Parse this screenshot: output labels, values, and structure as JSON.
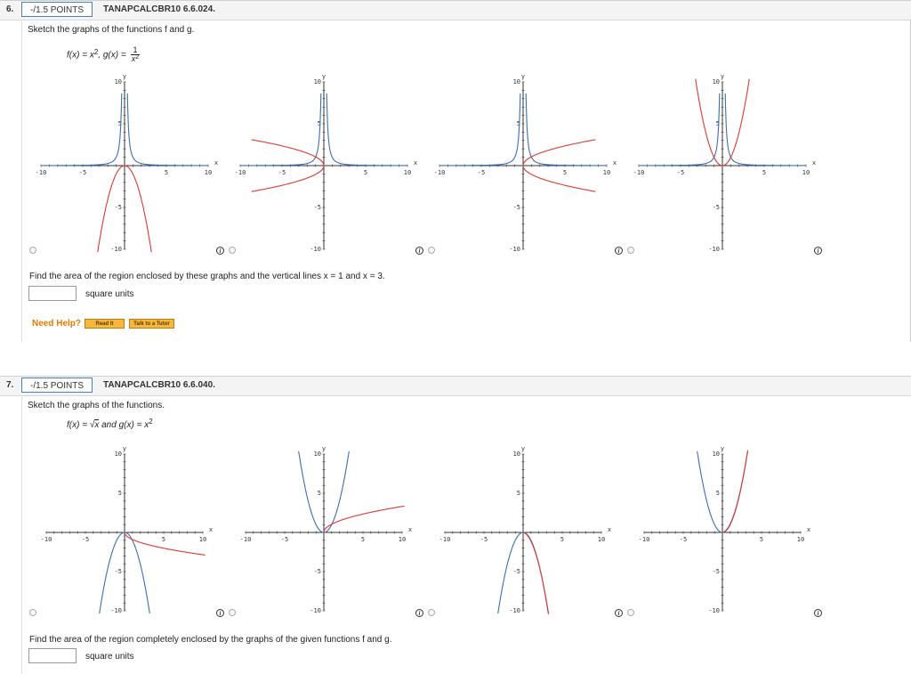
{
  "q6": {
    "number": "6.",
    "points": "-/1.5 POINTS",
    "code": "TANAPCALCBR10 6.6.024.",
    "instruction": "Sketch the graphs of the functions f and g.",
    "formula": {
      "f_label": "f(x) = x",
      "f_exp": "2",
      "sep": ", g(x) = ",
      "g_num": "1",
      "g_den": "x",
      "g_den_exp": "2"
    },
    "question": "Find the area of the region enclosed by these graphs and the vertical lines x = 1 and x = 3.",
    "answer_value": "",
    "unit": "square units",
    "need_help": "Need Help?",
    "read_it": "Read It",
    "talk_tutor": "Talk to a Tutor"
  },
  "q7": {
    "number": "7.",
    "points": "-/1.5 POINTS",
    "code": "TANAPCALCBR10 6.6.040.",
    "instruction": "Sketch the graphs of the functions.",
    "formula": {
      "f_label": "f(x) = ",
      "sqrt": "√",
      "f_arg": "x",
      "and": " and g(x) = x",
      "g_exp": "2"
    },
    "question": "Find the area of the region completely enclosed by the graphs of the given functions f and g.",
    "answer_value": "",
    "unit": "square units"
  },
  "axis_text": {
    "x": "x",
    "y": "y",
    "m10": "-10",
    "m5": "-5",
    "p5": "5",
    "p10": "10"
  },
  "info_glyph": "i",
  "colors": {
    "curve_blue": "#3a6fb5",
    "curve_red": "#e0382e",
    "accent": "#4a7fb0",
    "help": "#e07b00"
  },
  "chart_data": [
    {
      "type": "line",
      "question": "6",
      "option": 1,
      "xlim": [
        -10,
        10
      ],
      "ylim": [
        -10,
        10
      ],
      "series": [
        {
          "color": "#3a6fb5",
          "expr": "1/x^2"
        },
        {
          "color": "#e0382e",
          "expr": "-x^2"
        }
      ]
    },
    {
      "type": "line",
      "question": "6",
      "option": 2,
      "xlim": [
        -10,
        10
      ],
      "ylim": [
        -10,
        10
      ],
      "series": [
        {
          "color": "#3a6fb5",
          "expr": "1/x^2"
        },
        {
          "color": "#e0382e",
          "expr": "x = y^2 (left-opening)"
        }
      ]
    },
    {
      "type": "line",
      "question": "6",
      "option": 3,
      "xlim": [
        -10,
        10
      ],
      "ylim": [
        -10,
        10
      ],
      "series": [
        {
          "color": "#3a6fb5",
          "expr": "1/x^2"
        },
        {
          "color": "#e0382e",
          "expr": "x = y^2 (right-opening)"
        }
      ]
    },
    {
      "type": "line",
      "question": "6",
      "option": 4,
      "xlim": [
        -10,
        10
      ],
      "ylim": [
        -10,
        10
      ],
      "series": [
        {
          "color": "#3a6fb5",
          "expr": "1/x^2"
        },
        {
          "color": "#e0382e",
          "expr": "x^2"
        }
      ]
    },
    {
      "type": "line",
      "question": "7",
      "option": 1,
      "xlim": [
        -10,
        10
      ],
      "ylim": [
        -10,
        10
      ],
      "series": [
        {
          "color": "#3a6fb5",
          "expr": "-x^2"
        },
        {
          "color": "#e0382e",
          "expr": "-sqrt(x)"
        }
      ]
    },
    {
      "type": "line",
      "question": "7",
      "option": 2,
      "xlim": [
        -10,
        10
      ],
      "ylim": [
        -10,
        10
      ],
      "series": [
        {
          "color": "#3a6fb5",
          "expr": "x^2"
        },
        {
          "color": "#e0382e",
          "expr": "sqrt(x)"
        }
      ]
    },
    {
      "type": "line",
      "question": "7",
      "option": 3,
      "xlim": [
        -10,
        10
      ],
      "ylim": [
        -10,
        10
      ],
      "series": [
        {
          "color": "#3a6fb5",
          "expr": "-x^2"
        },
        {
          "color": "#e0382e",
          "expr": "-x^2 (near)"
        }
      ]
    },
    {
      "type": "line",
      "question": "7",
      "option": 4,
      "xlim": [
        -10,
        10
      ],
      "ylim": [
        -10,
        10
      ],
      "series": [
        {
          "color": "#3a6fb5",
          "expr": "x^2"
        },
        {
          "color": "#e0382e",
          "expr": "x^2 (near)"
        }
      ]
    }
  ]
}
